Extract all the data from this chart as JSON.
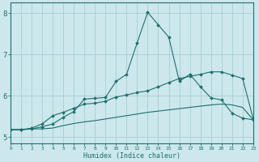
{
  "xlabel": "Humidex (Indice chaleur)",
  "bg_color": "#cce8ec",
  "grid_color": "#aacdd4",
  "line_color": "#1e6e6e",
  "x_values": [
    0,
    1,
    2,
    3,
    4,
    5,
    6,
    7,
    8,
    9,
    10,
    11,
    12,
    13,
    14,
    15,
    16,
    17,
    18,
    19,
    20,
    21,
    22,
    23
  ],
  "line1": [
    5.18,
    5.18,
    5.2,
    5.25,
    5.32,
    5.48,
    5.62,
    5.92,
    5.94,
    5.96,
    6.35,
    6.52,
    7.28,
    8.02,
    7.72,
    7.42,
    6.35,
    6.52,
    6.22,
    5.95,
    5.9,
    5.58,
    5.46,
    5.42
  ],
  "line2": [
    5.18,
    5.18,
    5.22,
    5.32,
    5.52,
    5.6,
    5.7,
    5.8,
    5.82,
    5.87,
    5.97,
    6.02,
    6.08,
    6.12,
    6.22,
    6.32,
    6.42,
    6.47,
    6.52,
    6.58,
    6.58,
    6.5,
    6.42,
    5.45
  ],
  "line3": [
    5.18,
    5.18,
    5.2,
    5.2,
    5.22,
    5.28,
    5.33,
    5.37,
    5.4,
    5.44,
    5.48,
    5.52,
    5.56,
    5.6,
    5.63,
    5.66,
    5.69,
    5.72,
    5.75,
    5.78,
    5.8,
    5.78,
    5.72,
    5.42
  ],
  "xlim": [
    0,
    23
  ],
  "ylim": [
    4.85,
    8.25
  ],
  "yticks": [
    5,
    6,
    7,
    8
  ],
  "xtick_labels": [
    "0",
    "1",
    "2",
    "3",
    "4",
    "5",
    "6",
    "7",
    "8",
    "9",
    "10",
    "11",
    "12",
    "13",
    "14",
    "15",
    "16",
    "17",
    "18",
    "19",
    "20",
    "21",
    "22",
    "23"
  ]
}
